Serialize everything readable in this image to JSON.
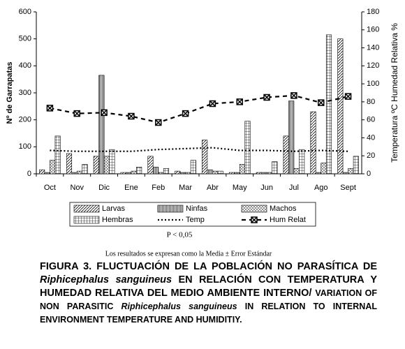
{
  "chart_data": {
    "type": "bar",
    "ylabel": "Nº de Garrapatas",
    "y2label": "Temperatura ºC Humedad Relativa %",
    "categories": [
      "Oct",
      "Nov",
      "Dic",
      "Ene",
      "Feb",
      "Mar",
      "Abr",
      "May",
      "Jun",
      "Jul",
      "Ago",
      "Sept"
    ],
    "ylim": [
      0,
      600
    ],
    "yticks": [
      0,
      100,
      200,
      300,
      400,
      500,
      600
    ],
    "y2lim": [
      0,
      180
    ],
    "y2ticks": [
      0,
      20,
      40,
      60,
      80,
      100,
      120,
      140,
      160,
      180
    ],
    "series": [
      {
        "name": "Larvas",
        "type": "bar",
        "pattern": "diag",
        "values": [
          15,
          75,
          65,
          5,
          65,
          10,
          125,
          5,
          5,
          140,
          230,
          500
        ]
      },
      {
        "name": "Ninfas",
        "type": "bar",
        "pattern": "vert",
        "values": [
          5,
          5,
          365,
          5,
          25,
          5,
          15,
          5,
          5,
          270,
          5,
          5
        ]
      },
      {
        "name": "Machos",
        "type": "bar",
        "pattern": "cross",
        "values": [
          50,
          10,
          65,
          10,
          5,
          5,
          10,
          35,
          5,
          20,
          40,
          20
        ]
      },
      {
        "name": "Hembras",
        "type": "bar",
        "pattern": "grid",
        "values": [
          140,
          35,
          90,
          25,
          20,
          50,
          10,
          195,
          45,
          90,
          515,
          65
        ]
      },
      {
        "name": "Temp",
        "type": "line",
        "axis": "y2",
        "color": "#000000",
        "dash": "dotted",
        "values": [
          26,
          25,
          25,
          25,
          27,
          28,
          29,
          26,
          26,
          25,
          26,
          25
        ]
      },
      {
        "name": "Hum Relat",
        "type": "line",
        "axis": "y2",
        "color": "#000000",
        "dash": "dashed",
        "marker": "xbox",
        "values": [
          73,
          67,
          68,
          64,
          57,
          67,
          78,
          80,
          85,
          87,
          79,
          86
        ]
      }
    ],
    "annotation": "P < 0,05",
    "note": "Los resultados se expresan como la Media  ± Error Estándar"
  },
  "caption": {
    "segments": [
      {
        "text": "FIGURA 3. FLUCTUACIÓN DE LA POBLACIÓN NO PARASÍTICA DE ",
        "italic": false,
        "small": false
      },
      {
        "text": "Riphicephalus sanguineus",
        "italic": true,
        "small": false
      },
      {
        "text": " EN RELACIÓN CON TEMPERATURA Y HUMEDAD RELATIVA DEL MEDIO AMBIENTE INTERNO/ ",
        "italic": false,
        "small": false
      },
      {
        "text": "VARIATION OF NON PARASITIC ",
        "italic": false,
        "small": true
      },
      {
        "text": "Riphicephalus sanguineus",
        "italic": true,
        "small": true
      },
      {
        "text": " IN RELATION TO INTERNAL ENVIRONMENT TEMPERATURE AND HUMIDITIY.",
        "italic": false,
        "small": true
      }
    ]
  }
}
